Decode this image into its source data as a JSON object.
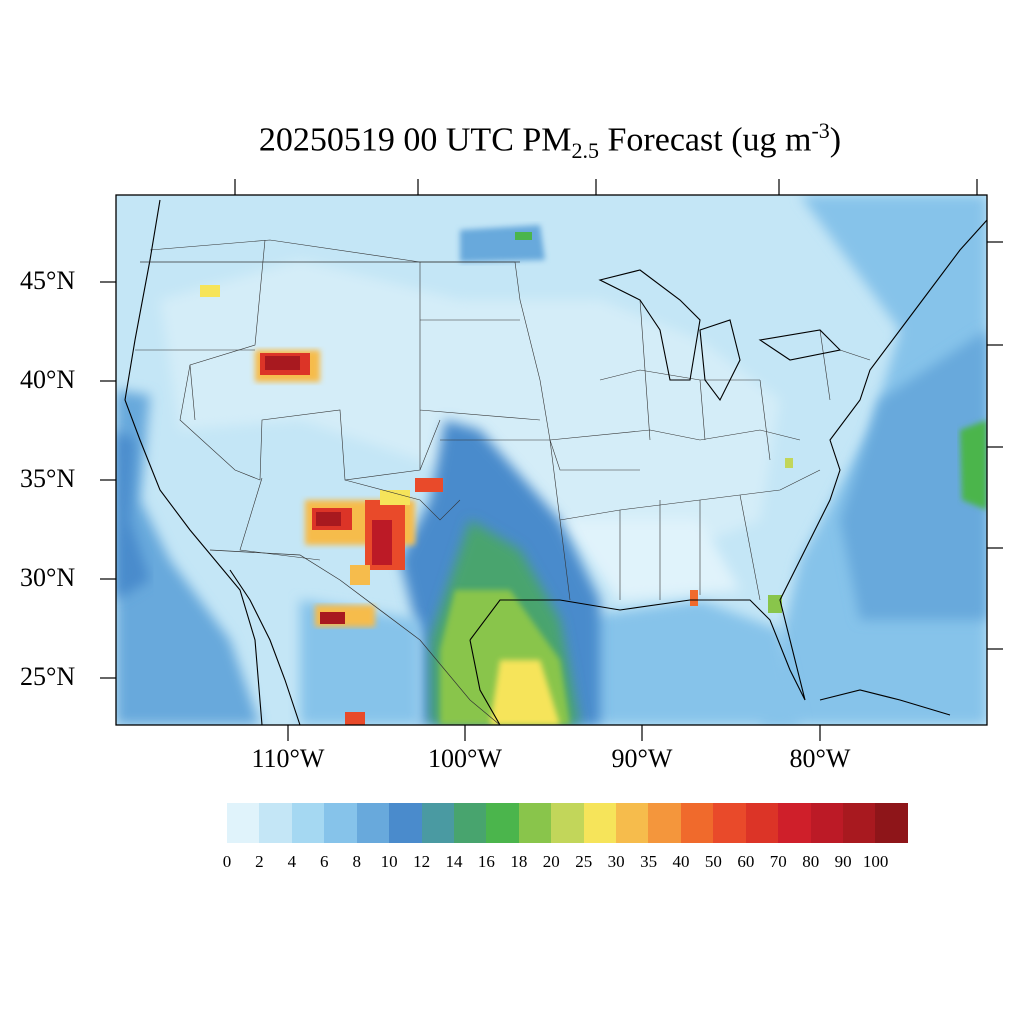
{
  "map": {
    "title_main": "20250519 00 UTC PM",
    "title_sub": "2.5",
    "title_rest": " Forecast (ug m",
    "title_sup": "-3",
    "title_end": ")",
    "lat_labels": [
      "45°N",
      "40°N",
      "35°N",
      "30°N",
      "25°N"
    ],
    "lon_labels": [
      "110°W",
      "100°W",
      "90°W",
      "80°W"
    ],
    "lat_values": [
      45,
      40,
      35,
      30,
      25
    ],
    "lon_values": [
      -110,
      -100,
      -90,
      -80
    ],
    "variable": "PM2.5",
    "units": "ug m-3"
  },
  "colorbar": {
    "colors": [
      "#e0f3fb",
      "#c4e6f6",
      "#a5d8f2",
      "#86c3ea",
      "#68a9dc",
      "#4a8bcc",
      "#4a9aa2",
      "#48a46e",
      "#4bb54c",
      "#89c54b",
      "#c2d65a",
      "#f6e45a",
      "#f6bc4c",
      "#f4963c",
      "#f06a2c",
      "#e94a2a",
      "#dc3427",
      "#cf1f2a",
      "#bc1a26",
      "#a8191f",
      "#8e1519"
    ],
    "labels": [
      "0",
      "2",
      "4",
      "6",
      "8",
      "10",
      "12",
      "14",
      "16",
      "18",
      "20",
      "25",
      "30",
      "35",
      "40",
      "50",
      "60",
      "70",
      "80",
      "90",
      "100"
    ]
  }
}
